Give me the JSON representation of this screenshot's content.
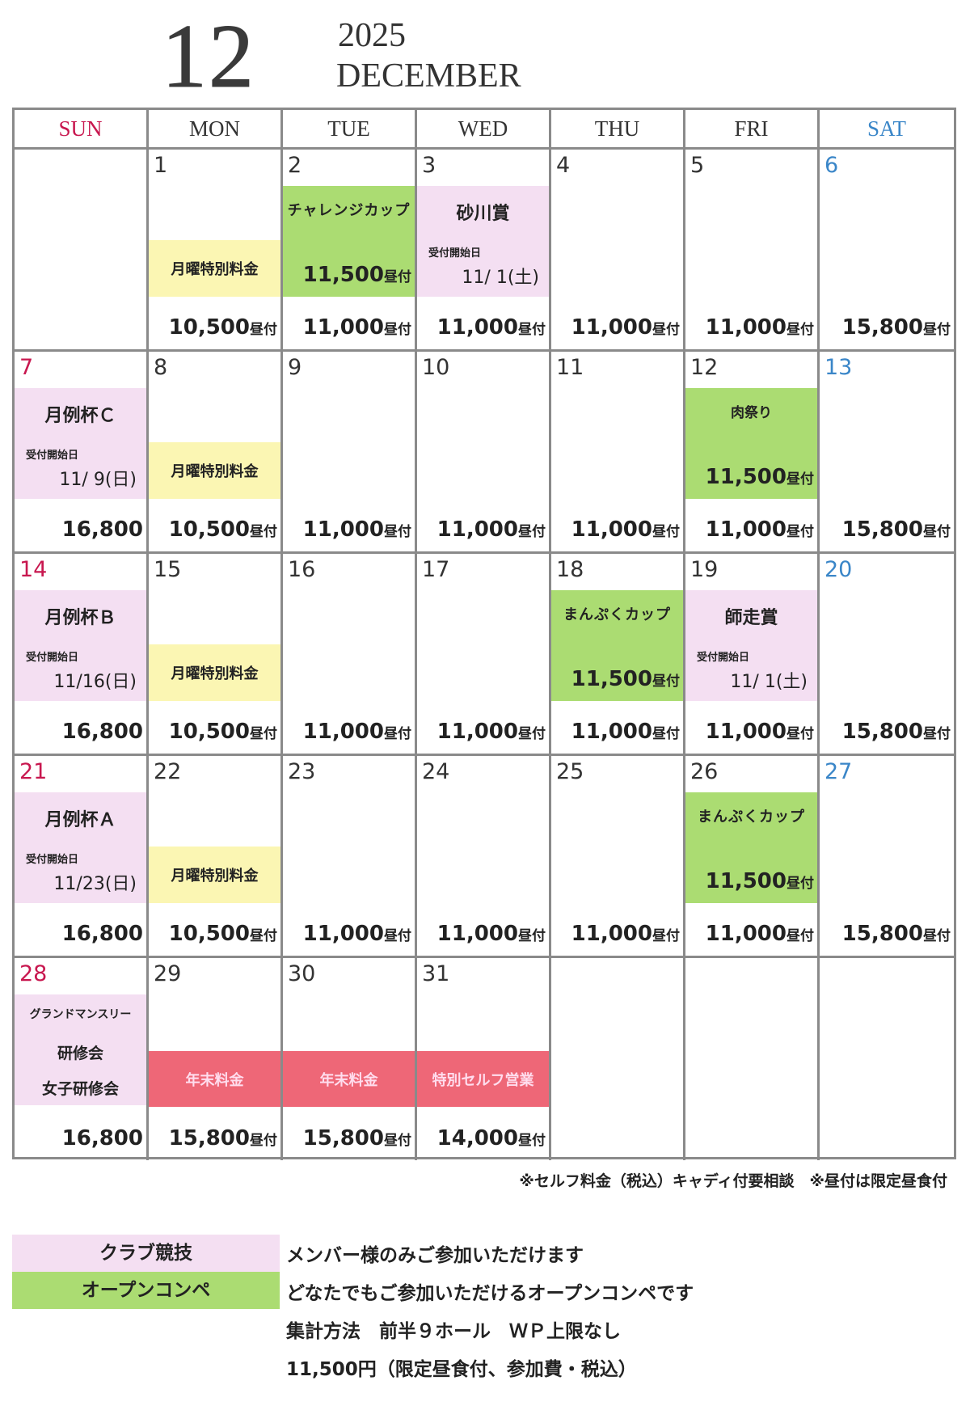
{
  "header": {
    "month_number": "12",
    "year": "2025",
    "month_name": "DECEMBER"
  },
  "colors": {
    "sunday": "#c8174f",
    "saturday": "#3a86c8",
    "club": "#f4dff2",
    "open": "#abdc72",
    "monday_special": "#fbf6b3",
    "year_end": "#ee6777"
  },
  "weekdays": [
    "SUN",
    "MON",
    "TUE",
    "WED",
    "THU",
    "FRI",
    "SAT"
  ],
  "weeks": [
    [
      {
        "date": "",
        "price": "",
        "suffix": ""
      },
      {
        "date": "1",
        "price": "10,500",
        "suffix": "昼付",
        "event": {
          "type": "yellow",
          "title": "月曜特別料金"
        }
      },
      {
        "date": "2",
        "price": "11,000",
        "suffix": "昼付",
        "event": {
          "type": "green",
          "title": "チャレンジカップ",
          "title_size": "small",
          "price": "11,500",
          "suffix": "昼付"
        }
      },
      {
        "date": "3",
        "price": "11,000",
        "suffix": "昼付",
        "event": {
          "type": "pink",
          "title": "砂川賞",
          "label": "受付開始日",
          "entry_date": "11/ 1(土)"
        }
      },
      {
        "date": "4",
        "price": "11,000",
        "suffix": "昼付"
      },
      {
        "date": "5",
        "price": "11,000",
        "suffix": "昼付"
      },
      {
        "date": "6",
        "price": "15,800",
        "suffix": "昼付"
      }
    ],
    [
      {
        "date": "7",
        "price": "16,800",
        "suffix": "",
        "event": {
          "type": "pink",
          "title": "月例杯Ｃ",
          "label": "受付開始日",
          "entry_date": "11/ 9(日)"
        }
      },
      {
        "date": "8",
        "price": "10,500",
        "suffix": "昼付",
        "event": {
          "type": "yellow",
          "title": "月曜特別料金"
        }
      },
      {
        "date": "9",
        "price": "11,000",
        "suffix": "昼付"
      },
      {
        "date": "10",
        "price": "11,000",
        "suffix": "昼付"
      },
      {
        "date": "11",
        "price": "11,000",
        "suffix": "昼付"
      },
      {
        "date": "12",
        "price": "11,000",
        "suffix": "昼付",
        "event": {
          "type": "green",
          "title": "肉祭り",
          "title_size": "xs",
          "price": "11,500",
          "suffix": "昼付"
        }
      },
      {
        "date": "13",
        "price": "15,800",
        "suffix": "昼付"
      }
    ],
    [
      {
        "date": "14",
        "price": "16,800",
        "suffix": "",
        "event": {
          "type": "pink",
          "title": "月例杯Ｂ",
          "label": "受付開始日",
          "entry_date": "11/16(日)"
        }
      },
      {
        "date": "15",
        "price": "10,500",
        "suffix": "昼付",
        "event": {
          "type": "yellow",
          "title": "月曜特別料金"
        }
      },
      {
        "date": "16",
        "price": "11,000",
        "suffix": "昼付"
      },
      {
        "date": "17",
        "price": "11,000",
        "suffix": "昼付"
      },
      {
        "date": "18",
        "price": "11,000",
        "suffix": "昼付",
        "event": {
          "type": "green",
          "title": "まんぷくカップ",
          "title_size": "small",
          "price": "11,500",
          "suffix": "昼付"
        }
      },
      {
        "date": "19",
        "price": "11,000",
        "suffix": "昼付",
        "event": {
          "type": "pink",
          "title": "師走賞",
          "label": "受付開始日",
          "entry_date": "11/ 1(土)"
        }
      },
      {
        "date": "20",
        "price": "15,800",
        "suffix": "昼付"
      }
    ],
    [
      {
        "date": "21",
        "price": "16,800",
        "suffix": "",
        "event": {
          "type": "pink",
          "title": "月例杯Ａ",
          "label": "受付開始日",
          "entry_date": "11/23(日)"
        }
      },
      {
        "date": "22",
        "price": "10,500",
        "suffix": "昼付",
        "event": {
          "type": "yellow",
          "title": "月曜特別料金"
        }
      },
      {
        "date": "23",
        "price": "11,000",
        "suffix": "昼付"
      },
      {
        "date": "24",
        "price": "11,000",
        "suffix": "昼付"
      },
      {
        "date": "25",
        "price": "11,000",
        "suffix": "昼付"
      },
      {
        "date": "26",
        "price": "11,000",
        "suffix": "昼付",
        "event": {
          "type": "green",
          "title": "まんぷくカップ",
          "title_size": "small",
          "price": "11,500",
          "suffix": "昼付"
        }
      },
      {
        "date": "27",
        "price": "15,800",
        "suffix": "昼付"
      }
    ],
    [
      {
        "date": "28",
        "price": "16,800",
        "suffix": "",
        "event": {
          "type": "pink-multi",
          "lines": [
            "グランドマンスリー",
            "研修会",
            "女子研修会"
          ]
        }
      },
      {
        "date": "29",
        "price": "15,800",
        "suffix": "昼付",
        "event": {
          "type": "red",
          "title": "年末料金"
        }
      },
      {
        "date": "30",
        "price": "15,800",
        "suffix": "昼付",
        "event": {
          "type": "red",
          "title": "年末料金"
        }
      },
      {
        "date": "31",
        "price": "14,000",
        "suffix": "昼付",
        "event": {
          "type": "red",
          "title": "特別セルフ営業"
        }
      },
      {
        "date": "",
        "price": "",
        "suffix": ""
      },
      {
        "date": "",
        "price": "",
        "suffix": ""
      },
      {
        "date": "",
        "price": "",
        "suffix": ""
      }
    ]
  ],
  "footnote": "※セルフ料金（税込）キャディ付要相談　※昼付は限定昼食付",
  "legend": {
    "club_label": "クラブ競技",
    "open_label": "オープンコンペ",
    "lines": [
      "メンバー様のみご参加いただけます",
      "どなたでもご参加いただけるオープンコンペです",
      "集計方法　前半９ホール　ＷＰ上限なし",
      "11,500円（限定昼食付、参加費・税込）"
    ]
  }
}
